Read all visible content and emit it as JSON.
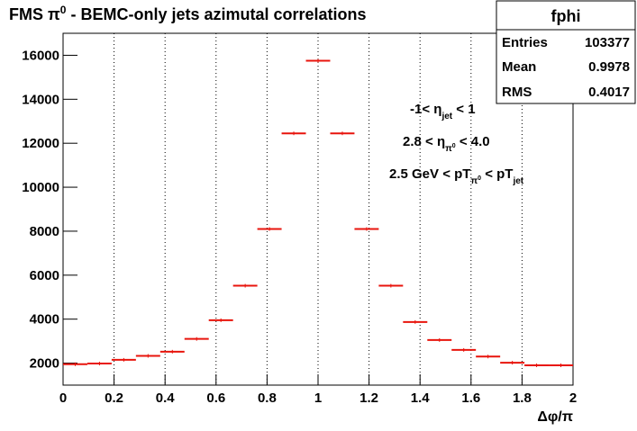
{
  "chart_data": {
    "type": "histogram",
    "title": [
      "FMS π",
      "0",
      " - BEMC-only jets azimutal correlations"
    ],
    "x_label": "Δφ/π",
    "bins": [
      0,
      0.0952,
      0.1905,
      0.2857,
      0.381,
      0.4762,
      0.5714,
      0.6667,
      0.7619,
      0.8571,
      0.9524,
      1.0476,
      1.1429,
      1.2381,
      1.3333,
      1.4286,
      1.5238,
      1.619,
      1.7143,
      1.8095,
      1.9048,
      2
    ],
    "values": [
      1950,
      1980,
      2150,
      2330,
      2520,
      3100,
      3950,
      5520,
      8100,
      12450,
      15750,
      12450,
      8100,
      5520,
      3870,
      3050,
      2600,
      2300,
      2020,
      1900,
      1900
    ],
    "color": "#e8140c",
    "xlim": [
      0,
      2
    ],
    "xticks": [
      0,
      0.2,
      0.4,
      0.6,
      0.8,
      1,
      1.2,
      1.4,
      1.6,
      1.8,
      2
    ],
    "ylim": [
      1000,
      17000
    ],
    "yticks": [
      2000,
      4000,
      6000,
      8000,
      10000,
      12000,
      14000,
      16000
    ],
    "grid_x": true,
    "stats": {
      "name": "fphi",
      "rows": [
        [
          "Entries",
          "103377"
        ],
        [
          "Mean",
          "0.9978"
        ],
        [
          "RMS",
          "0.4017"
        ]
      ]
    },
    "annotations": [
      [
        "-1< η",
        "jet",
        " < 1"
      ],
      [
        "2.8 < η",
        "π",
        "0",
        " < 4.0"
      ],
      [
        "2.5 GeV < pT",
        "π",
        "0",
        " < pT",
        "jet"
      ]
    ]
  }
}
